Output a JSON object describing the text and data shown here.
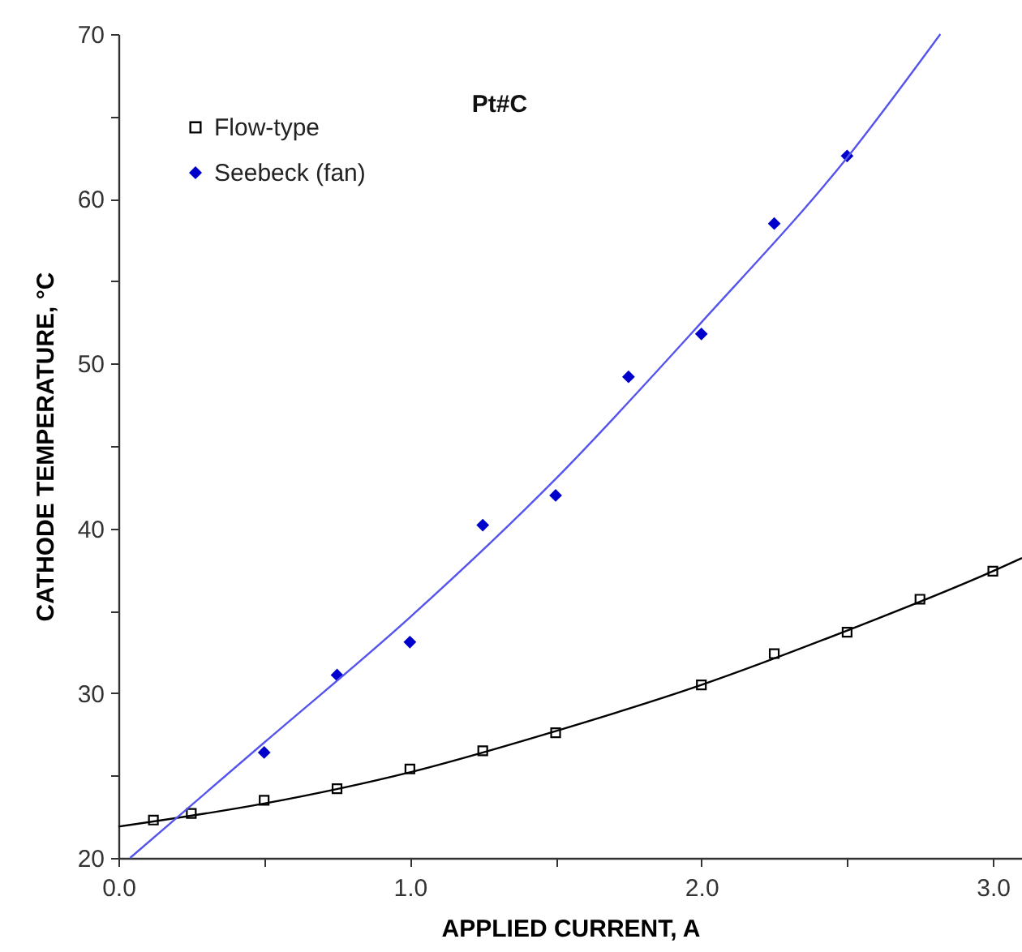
{
  "chart_data": {
    "type": "scatter",
    "title": "Pt#C",
    "xlabel": "APPLIED CURRENT, A",
    "ylabel": "CATHODE TEMPERATURE, °C",
    "xlim": [
      0,
      3.1
    ],
    "ylim": [
      20,
      70
    ],
    "xticks": [
      {
        "value": 0,
        "label": "0.0"
      },
      {
        "value": 0.5,
        "label": null
      },
      {
        "value": 1,
        "label": "1.0"
      },
      {
        "value": 1.5,
        "label": null
      },
      {
        "value": 2,
        "label": "2.0"
      },
      {
        "value": 2.5,
        "label": null
      },
      {
        "value": 3,
        "label": "3.0"
      }
    ],
    "yticks": [
      20,
      {
        "value": 25,
        "label": null
      },
      30,
      {
        "value": 35,
        "label": null
      },
      40,
      {
        "value": 45,
        "label": null
      },
      50,
      {
        "value": 55,
        "label": null
      },
      60,
      {
        "value": 65,
        "label": null
      },
      70
    ],
    "legend": "top left",
    "series": [
      {
        "name": "Flow-type",
        "marker": "square",
        "color": "#000000",
        "x": [
          0.12,
          0.25,
          0.5,
          0.75,
          1.0,
          1.25,
          1.5,
          2.0,
          2.25,
          2.5,
          2.75,
          3.0
        ],
        "values": [
          22.3,
          22.7,
          23.5,
          24.2,
          25.4,
          26.5,
          27.6,
          30.5,
          32.4,
          33.7,
          35.7,
          37.4
        ]
      },
      {
        "name": "Seebeck (fan)",
        "marker": "diamond",
        "color": "#0000cc",
        "x": [
          0.5,
          0.75,
          1.0,
          1.25,
          1.5,
          1.75,
          2.0,
          2.25,
          2.5
        ],
        "values": [
          26.4,
          31.1,
          33.1,
          40.2,
          42.0,
          49.2,
          51.8,
          58.5,
          62.6
        ]
      },
      {
        "type": "line",
        "color": "#000000",
        "x": [
          0,
          0.5,
          1.0,
          1.5,
          2.0,
          2.5,
          3.0,
          3.1
        ],
        "values": [
          21.9,
          23.3,
          25.2,
          27.7,
          30.5,
          33.8,
          37.4,
          38.2
        ]
      },
      {
        "type": "line",
        "color": "#5555ee",
        "x": [
          0.04,
          0.5,
          1.0,
          1.5,
          2.0,
          2.5,
          2.82
        ],
        "values": [
          20,
          27,
          34.6,
          43,
          52.5,
          62.5,
          70
        ]
      }
    ]
  }
}
